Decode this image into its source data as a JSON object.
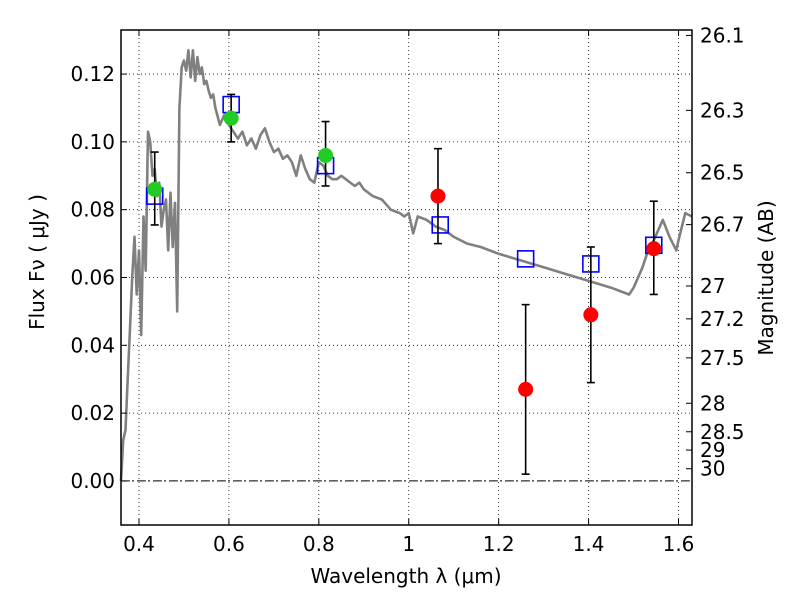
{
  "chart_data": {
    "type": "scatter",
    "xlabel": "Wavelength  λ (μm)",
    "ylabel": "Flux  Fν  ( μJy )",
    "y2label": "Magnitude (AB)",
    "xlim": [
      0.36,
      1.63
    ],
    "ylim": [
      -0.013,
      0.133
    ],
    "grid": true,
    "x_ticks": [
      0.4,
      0.6,
      0.8,
      1.0,
      1.2,
      1.4,
      1.6
    ],
    "x_tick_labels": [
      "0.4",
      "0.6",
      "0.8",
      "1",
      "1.2",
      "1.4",
      "1.6"
    ],
    "y_ticks": [
      0.0,
      0.02,
      0.04,
      0.06,
      0.08,
      0.1,
      0.12
    ],
    "y_tick_labels": [
      "0.00",
      "0.02",
      "0.04",
      "0.06",
      "0.08",
      "0.10",
      "0.12"
    ],
    "y2_ticks": [
      {
        "label": "26.1",
        "flux": 0.1314
      },
      {
        "label": "26.3",
        "flux": 0.1093
      },
      {
        "label": "26.5",
        "flux": 0.0909
      },
      {
        "label": "26.7",
        "flux": 0.0756
      },
      {
        "label": "27",
        "flux": 0.0575
      },
      {
        "label": "27.2",
        "flux": 0.0478
      },
      {
        "label": "27.5",
        "flux": 0.0363
      },
      {
        "label": "28",
        "flux": 0.0229
      },
      {
        "label": "28.5",
        "flux": 0.0145
      },
      {
        "label": "29",
        "flux": 0.0091
      },
      {
        "label": "30",
        "flux": 0.0036
      }
    ],
    "model_sed": {
      "color": "#808080",
      "x": [
        0.36,
        0.365,
        0.37,
        0.375,
        0.38,
        0.385,
        0.39,
        0.395,
        0.4,
        0.405,
        0.41,
        0.415,
        0.42,
        0.425,
        0.43,
        0.435,
        0.44,
        0.445,
        0.45,
        0.455,
        0.46,
        0.465,
        0.47,
        0.475,
        0.48,
        0.485,
        0.49,
        0.495,
        0.5,
        0.505,
        0.51,
        0.515,
        0.52,
        0.525,
        0.53,
        0.535,
        0.54,
        0.545,
        0.55,
        0.555,
        0.56,
        0.565,
        0.57,
        0.58,
        0.59,
        0.6,
        0.61,
        0.62,
        0.63,
        0.64,
        0.65,
        0.66,
        0.67,
        0.68,
        0.69,
        0.7,
        0.71,
        0.72,
        0.73,
        0.74,
        0.75,
        0.76,
        0.77,
        0.78,
        0.79,
        0.8,
        0.81,
        0.82,
        0.83,
        0.84,
        0.85,
        0.86,
        0.87,
        0.88,
        0.89,
        0.9,
        0.92,
        0.94,
        0.96,
        0.98,
        0.99,
        1.0,
        1.01,
        1.02,
        1.04,
        1.06,
        1.08,
        1.1,
        1.13,
        1.16,
        1.2,
        1.25,
        1.3,
        1.35,
        1.4,
        1.45,
        1.47,
        1.49,
        1.5,
        1.52,
        1.53,
        1.545,
        1.555,
        1.565,
        1.58,
        1.595,
        1.6,
        1.615,
        1.63
      ],
      "y": [
        0.0,
        0.012,
        0.015,
        0.03,
        0.045,
        0.06,
        0.072,
        0.055,
        0.068,
        0.043,
        0.078,
        0.062,
        0.103,
        0.1,
        0.09,
        0.092,
        0.084,
        0.088,
        0.075,
        0.08,
        0.083,
        0.068,
        0.085,
        0.069,
        0.082,
        0.05,
        0.11,
        0.122,
        0.124,
        0.121,
        0.127,
        0.119,
        0.127,
        0.118,
        0.125,
        0.12,
        0.122,
        0.117,
        0.118,
        0.115,
        0.113,
        0.114,
        0.11,
        0.105,
        0.108,
        0.105,
        0.103,
        0.101,
        0.103,
        0.099,
        0.101,
        0.098,
        0.102,
        0.104,
        0.1,
        0.097,
        0.098,
        0.095,
        0.096,
        0.094,
        0.09,
        0.096,
        0.092,
        0.089,
        0.088,
        0.094,
        0.093,
        0.09,
        0.089,
        0.089,
        0.09,
        0.089,
        0.088,
        0.087,
        0.088,
        0.086,
        0.084,
        0.083,
        0.08,
        0.079,
        0.078,
        0.079,
        0.073,
        0.078,
        0.077,
        0.075,
        0.074,
        0.072,
        0.07,
        0.069,
        0.067,
        0.065,
        0.063,
        0.061,
        0.059,
        0.057,
        0.056,
        0.055,
        0.057,
        0.063,
        0.067,
        0.071,
        0.074,
        0.077,
        0.072,
        0.068,
        0.071,
        0.079,
        0.078
      ]
    },
    "model_points": {
      "marker": "open-square",
      "color": "#0000ff",
      "x": [
        0.435,
        0.605,
        0.815,
        1.07,
        1.26,
        1.405,
        1.545
      ],
      "y": [
        0.084,
        0.111,
        0.093,
        0.0755,
        0.0655,
        0.064,
        0.0695
      ]
    },
    "observed_points": {
      "marker": "filled-circle",
      "x": [
        0.435,
        0.605,
        0.815,
        1.065,
        1.26,
        1.405,
        1.545
      ],
      "y": [
        0.086,
        0.107,
        0.096,
        0.084,
        0.027,
        0.049,
        0.0685
      ],
      "yerr_low": [
        0.0755,
        0.1,
        0.087,
        0.07,
        0.002,
        0.029,
        0.055
      ],
      "yerr_high": [
        0.097,
        0.114,
        0.106,
        0.098,
        0.052,
        0.069,
        0.0825
      ],
      "colors": [
        "#22cc22",
        "#22cc22",
        "#22cc22",
        "#ff0000",
        "#ff0000",
        "#ff0000",
        "#ff0000"
      ]
    }
  }
}
